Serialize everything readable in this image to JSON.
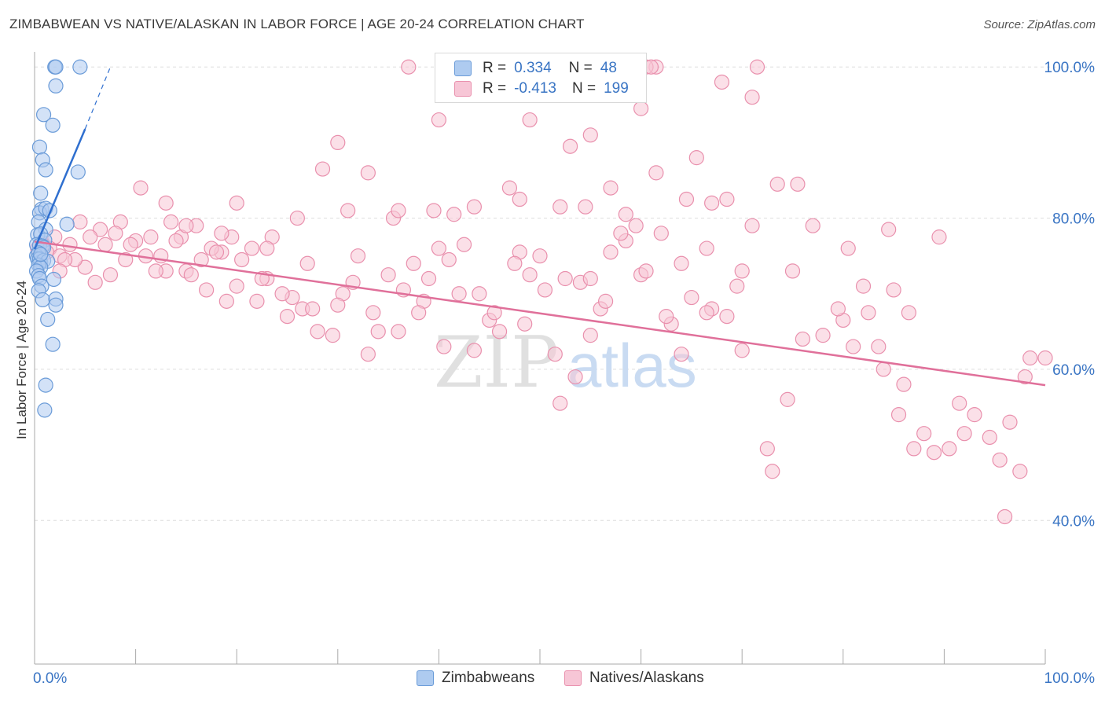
{
  "title": "ZIMBABWEAN VS NATIVE/ALASKAN IN LABOR FORCE | AGE 20-24 CORRELATION CHART",
  "source": "Source: ZipAtlas.com",
  "watermark": {
    "zip": "ZIP",
    "atlas": "atlas"
  },
  "colors": {
    "blue_fill": "#aecbf0",
    "blue_stroke": "#6a9bd8",
    "blue_line": "#2f6fcf",
    "pink_fill": "#f7c6d6",
    "pink_stroke": "#e990ad",
    "pink_line": "#e0709a",
    "tick_label": "#3a75c4",
    "grid": "#dddddd"
  },
  "legend": {
    "rows": [
      {
        "r_label": "R =",
        "r_value": "0.334",
        "n_label": "N =",
        "n_value": "48",
        "color": "#aecbf0"
      },
      {
        "r_label": "R =",
        "r_value": "-0.413",
        "n_label": "N =",
        "n_value": "199",
        "color": "#f7c6d6"
      }
    ]
  },
  "chart_data": {
    "type": "scatter",
    "title": "ZIMBABWEAN VS NATIVE/ALASKAN IN LABOR FORCE | AGE 20-24 CORRELATION CHART",
    "xlabel": "",
    "ylabel": "In Labor Force | Age 20-24",
    "xlim": [
      0,
      100
    ],
    "ylim": [
      21,
      102
    ],
    "x_tick_labels": [
      "0.0%",
      "100.0%"
    ],
    "y_ticks": [
      40,
      60,
      80,
      100
    ],
    "y_tick_labels": [
      "40.0%",
      "60.0%",
      "80.0%",
      "100.0%"
    ],
    "grid": true,
    "legend_position": "top-center",
    "series": [
      {
        "name": "Zimbabweans",
        "color": "#aecbf0",
        "trend": {
          "x": [
            0,
            5
          ],
          "y": [
            75.9,
            91.8
          ],
          "dashed_to": [
            7.5,
            100
          ]
        },
        "points": [
          [
            2.0,
            100
          ],
          [
            2.1,
            100
          ],
          [
            4.5,
            100
          ],
          [
            2.1,
            97.5
          ],
          [
            0.9,
            93.7
          ],
          [
            1.8,
            92.3
          ],
          [
            0.5,
            89.4
          ],
          [
            4.3,
            86.1
          ],
          [
            0.8,
            87.7
          ],
          [
            1.1,
            86.4
          ],
          [
            0.6,
            83.3
          ],
          [
            0.7,
            81.2
          ],
          [
            0.5,
            80.7
          ],
          [
            1.1,
            81.3
          ],
          [
            1.5,
            81.0
          ],
          [
            0.4,
            79.5
          ],
          [
            1.1,
            78.5
          ],
          [
            3.2,
            79.2
          ],
          [
            0.3,
            77.8
          ],
          [
            0.6,
            77.9
          ],
          [
            1.0,
            77.1
          ],
          [
            0.2,
            76.5
          ],
          [
            0.5,
            76.4
          ],
          [
            0.8,
            76.3
          ],
          [
            0.9,
            76.1
          ],
          [
            0.2,
            75.0
          ],
          [
            0.4,
            75.4
          ],
          [
            0.3,
            74.6
          ],
          [
            0.6,
            74.2
          ],
          [
            0.5,
            74.6
          ],
          [
            0.9,
            74.4
          ],
          [
            1.3,
            74.3
          ],
          [
            0.4,
            73.8
          ],
          [
            0.6,
            73.5
          ],
          [
            0.2,
            73.0
          ],
          [
            0.4,
            72.4
          ],
          [
            0.5,
            72.0
          ],
          [
            1.9,
            71.9
          ],
          [
            0.7,
            71.0
          ],
          [
            0.4,
            70.4
          ],
          [
            0.8,
            69.2
          ],
          [
            2.1,
            69.3
          ],
          [
            2.1,
            68.5
          ],
          [
            1.3,
            66.6
          ],
          [
            1.8,
            63.3
          ],
          [
            1.1,
            57.9
          ],
          [
            1.0,
            54.6
          ],
          [
            0.6,
            75.2
          ]
        ]
      },
      {
        "name": "Natives/Alaskans",
        "color": "#f7c6d6",
        "trend": {
          "x": [
            0,
            100
          ],
          "y": [
            76.9,
            57.9
          ]
        },
        "points": [
          [
            98.5,
            61.5
          ],
          [
            100.0,
            61.5
          ],
          [
            98.0,
            59.0
          ],
          [
            91.5,
            55.5
          ],
          [
            93.0,
            54.0
          ],
          [
            94.5,
            51.0
          ],
          [
            96.5,
            53.0
          ],
          [
            92.0,
            51.5
          ],
          [
            95.5,
            48.0
          ],
          [
            97.5,
            46.5
          ],
          [
            90.5,
            49.5
          ],
          [
            96.0,
            40.5
          ],
          [
            88.0,
            51.5
          ],
          [
            89.0,
            49.0
          ],
          [
            87.0,
            49.5
          ],
          [
            85.5,
            54.0
          ],
          [
            84.0,
            60.0
          ],
          [
            83.5,
            63.0
          ],
          [
            86.5,
            67.5
          ],
          [
            85.0,
            70.5
          ],
          [
            82.0,
            71.0
          ],
          [
            82.5,
            67.5
          ],
          [
            80.0,
            66.5
          ],
          [
            78.0,
            64.5
          ],
          [
            76.0,
            64.0
          ],
          [
            74.5,
            56.0
          ],
          [
            72.5,
            49.5
          ],
          [
            73.0,
            46.5
          ],
          [
            70.0,
            62.5
          ],
          [
            68.5,
            67.0
          ],
          [
            69.5,
            71.0
          ],
          [
            67.0,
            68.0
          ],
          [
            66.5,
            67.5
          ],
          [
            65.0,
            69.5
          ],
          [
            64.0,
            62.0
          ],
          [
            63.0,
            66.0
          ],
          [
            62.5,
            67.0
          ],
          [
            60.0,
            72.5
          ],
          [
            59.5,
            79.0
          ],
          [
            58.5,
            80.5
          ],
          [
            57.0,
            75.5
          ],
          [
            56.0,
            68.0
          ],
          [
            55.0,
            64.5
          ],
          [
            54.0,
            71.5
          ],
          [
            53.5,
            59.0
          ],
          [
            52.0,
            55.5
          ],
          [
            51.5,
            62.0
          ],
          [
            50.5,
            70.5
          ],
          [
            50.0,
            75.0
          ],
          [
            49.0,
            72.5
          ],
          [
            48.0,
            75.5
          ],
          [
            47.5,
            74.0
          ],
          [
            46.0,
            65.0
          ],
          [
            45.0,
            66.5
          ],
          [
            44.0,
            70.0
          ],
          [
            43.5,
            62.5
          ],
          [
            42.5,
            76.5
          ],
          [
            41.0,
            74.5
          ],
          [
            40.5,
            63.0
          ],
          [
            40.0,
            76.0
          ],
          [
            39.0,
            72.0
          ],
          [
            38.5,
            69.0
          ],
          [
            37.5,
            74.0
          ],
          [
            36.0,
            65.0
          ],
          [
            35.0,
            72.5
          ],
          [
            34.0,
            65.0
          ],
          [
            33.0,
            62.0
          ],
          [
            32.0,
            75.0
          ],
          [
            31.5,
            71.5
          ],
          [
            30.5,
            70.0
          ],
          [
            29.5,
            64.5
          ],
          [
            28.0,
            65.0
          ],
          [
            27.0,
            74.0
          ],
          [
            26.5,
            68.0
          ],
          [
            25.5,
            69.5
          ],
          [
            24.5,
            70.0
          ],
          [
            23.0,
            72.0
          ],
          [
            22.5,
            72.0
          ],
          [
            21.5,
            76.0
          ],
          [
            20.5,
            74.5
          ],
          [
            20.0,
            71.0
          ],
          [
            19.5,
            77.5
          ],
          [
            18.5,
            75.5
          ],
          [
            17.5,
            76.0
          ],
          [
            16.5,
            74.5
          ],
          [
            15.0,
            73.0
          ],
          [
            14.5,
            77.5
          ],
          [
            13.5,
            79.5
          ],
          [
            12.5,
            75.0
          ],
          [
            11.5,
            77.5
          ],
          [
            10.0,
            77.0
          ],
          [
            9.5,
            76.5
          ],
          [
            8.5,
            79.5
          ],
          [
            7.0,
            76.5
          ],
          [
            6.5,
            78.5
          ],
          [
            5.5,
            77.5
          ],
          [
            4.5,
            79.5
          ],
          [
            3.5,
            76.5
          ],
          [
            2.0,
            77.5
          ],
          [
            1.5,
            76.0
          ],
          [
            0.8,
            76.5
          ],
          [
            0.3,
            76.0
          ],
          [
            1.2,
            75.5
          ],
          [
            2.5,
            75.0
          ],
          [
            31.0,
            81.0
          ],
          [
            28.5,
            86.5
          ],
          [
            35.5,
            80.0
          ],
          [
            39.5,
            81.0
          ],
          [
            41.5,
            80.5
          ],
          [
            43.5,
            81.5
          ],
          [
            47.0,
            84.0
          ],
          [
            48.0,
            82.5
          ],
          [
            52.0,
            81.5
          ],
          [
            54.5,
            81.5
          ],
          [
            57.0,
            84.0
          ],
          [
            61.5,
            86.0
          ],
          [
            65.5,
            88.0
          ],
          [
            67.0,
            82.0
          ],
          [
            68.5,
            82.5
          ],
          [
            71.0,
            79.0
          ],
          [
            73.5,
            84.5
          ],
          [
            75.5,
            84.5
          ],
          [
            77.0,
            79.0
          ],
          [
            80.5,
            76.0
          ],
          [
            84.5,
            78.5
          ],
          [
            89.5,
            77.5
          ],
          [
            62.0,
            78.0
          ],
          [
            64.0,
            74.0
          ],
          [
            66.5,
            76.0
          ],
          [
            58.5,
            77.0
          ],
          [
            60.5,
            73.0
          ],
          [
            56.5,
            69.0
          ],
          [
            52.5,
            72.0
          ],
          [
            48.5,
            66.0
          ],
          [
            45.5,
            67.5
          ],
          [
            42.0,
            70.0
          ],
          [
            38.0,
            67.5
          ],
          [
            36.5,
            70.5
          ],
          [
            33.5,
            67.5
          ],
          [
            30.0,
            68.5
          ],
          [
            27.5,
            68.0
          ],
          [
            25.0,
            67.0
          ],
          [
            22.0,
            69.0
          ],
          [
            19.0,
            69.0
          ],
          [
            17.0,
            70.5
          ],
          [
            15.5,
            72.5
          ],
          [
            13.0,
            73.0
          ],
          [
            11.0,
            75.0
          ],
          [
            9.0,
            74.5
          ],
          [
            7.5,
            72.5
          ],
          [
            6.0,
            71.5
          ],
          [
            5.0,
            73.5
          ],
          [
            4.0,
            74.5
          ],
          [
            3.0,
            74.5
          ],
          [
            2.5,
            73.0
          ],
          [
            10.5,
            84.0
          ],
          [
            23.5,
            77.5
          ],
          [
            18.0,
            75.5
          ],
          [
            8.0,
            78.0
          ],
          [
            14.0,
            77.0
          ],
          [
            16.0,
            79.0
          ],
          [
            13.0,
            82.0
          ],
          [
            60.0,
            94.5
          ],
          [
            71.0,
            96.0
          ],
          [
            68.0,
            98.0
          ],
          [
            55.0,
            91.0
          ],
          [
            53.0,
            89.5
          ],
          [
            49.0,
            93.0
          ],
          [
            40.0,
            93.0
          ],
          [
            36.0,
            81.0
          ],
          [
            33.0,
            86.0
          ],
          [
            30.0,
            90.0
          ],
          [
            26.0,
            80.0
          ],
          [
            23.0,
            76.0
          ],
          [
            20.0,
            82.0
          ],
          [
            18.5,
            78.0
          ],
          [
            15.0,
            79.0
          ],
          [
            12.0,
            73.0
          ],
          [
            37.0,
            100.0
          ],
          [
            46.0,
            100.0
          ],
          [
            61.5,
            100.0
          ],
          [
            59.0,
            100.0
          ],
          [
            60.5,
            100.0
          ],
          [
            61.0,
            100.0
          ],
          [
            71.5,
            100.0
          ],
          [
            55.0,
            72.0
          ],
          [
            58.0,
            78.0
          ],
          [
            64.5,
            82.5
          ],
          [
            70.0,
            73.0
          ],
          [
            75.0,
            73.0
          ],
          [
            79.5,
            68.0
          ],
          [
            81.0,
            63.0
          ],
          [
            86.0,
            58.0
          ]
        ]
      }
    ]
  },
  "bottom_legend": {
    "items": [
      {
        "label": "Zimbabweans",
        "color": "#aecbf0"
      },
      {
        "label": "Natives/Alaskans",
        "color": "#f7c6d6"
      }
    ]
  }
}
